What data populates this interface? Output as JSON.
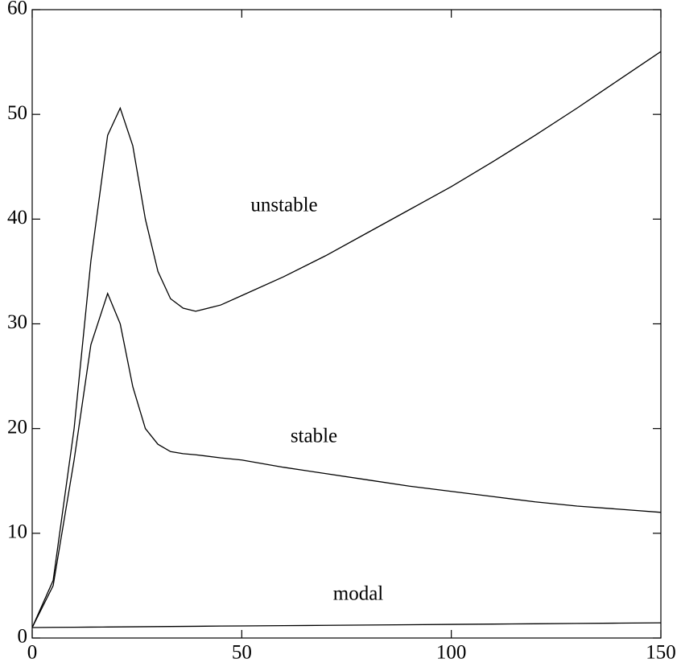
{
  "chart_data": {
    "type": "line",
    "x": [
      0,
      5,
      10,
      14,
      18,
      21,
      24,
      27,
      30,
      33,
      36,
      39,
      45,
      50,
      60,
      70,
      80,
      90,
      100,
      110,
      120,
      130,
      140,
      150
    ],
    "series": [
      {
        "name": "unstable",
        "color": "#000000",
        "values": [
          1,
          5.5,
          20,
          36,
          48,
          50.6,
          47,
          40,
          35,
          32.4,
          31.5,
          31.2,
          31.8,
          32.7,
          34.5,
          36.5,
          38.7,
          40.9,
          43.1,
          45.5,
          48,
          50.6,
          53.3,
          56
        ]
      },
      {
        "name": "stable",
        "color": "#000000",
        "values": [
          1,
          5,
          17,
          28,
          32.9,
          30,
          24,
          20,
          18.5,
          17.8,
          17.6,
          17.5,
          17.2,
          17,
          16.3,
          15.7,
          15.1,
          14.5,
          14,
          13.5,
          13,
          12.6,
          12.3,
          12
        ]
      },
      {
        "name": "modal",
        "color": "#000000",
        "values": [
          1,
          1.02,
          1.03,
          1.04,
          1.05,
          1.06,
          1.07,
          1.08,
          1.09,
          1.1,
          1.11,
          1.12,
          1.14,
          1.15,
          1.18,
          1.21,
          1.24,
          1.27,
          1.3,
          1.33,
          1.36,
          1.39,
          1.42,
          1.45
        ]
      }
    ],
    "xlim": [
      0,
      150
    ],
    "xticks": [
      0,
      50,
      100,
      150
    ],
    "ylim": [
      0,
      60
    ],
    "yticks": [
      0,
      10,
      20,
      30,
      40,
      50,
      60
    ]
  }
}
